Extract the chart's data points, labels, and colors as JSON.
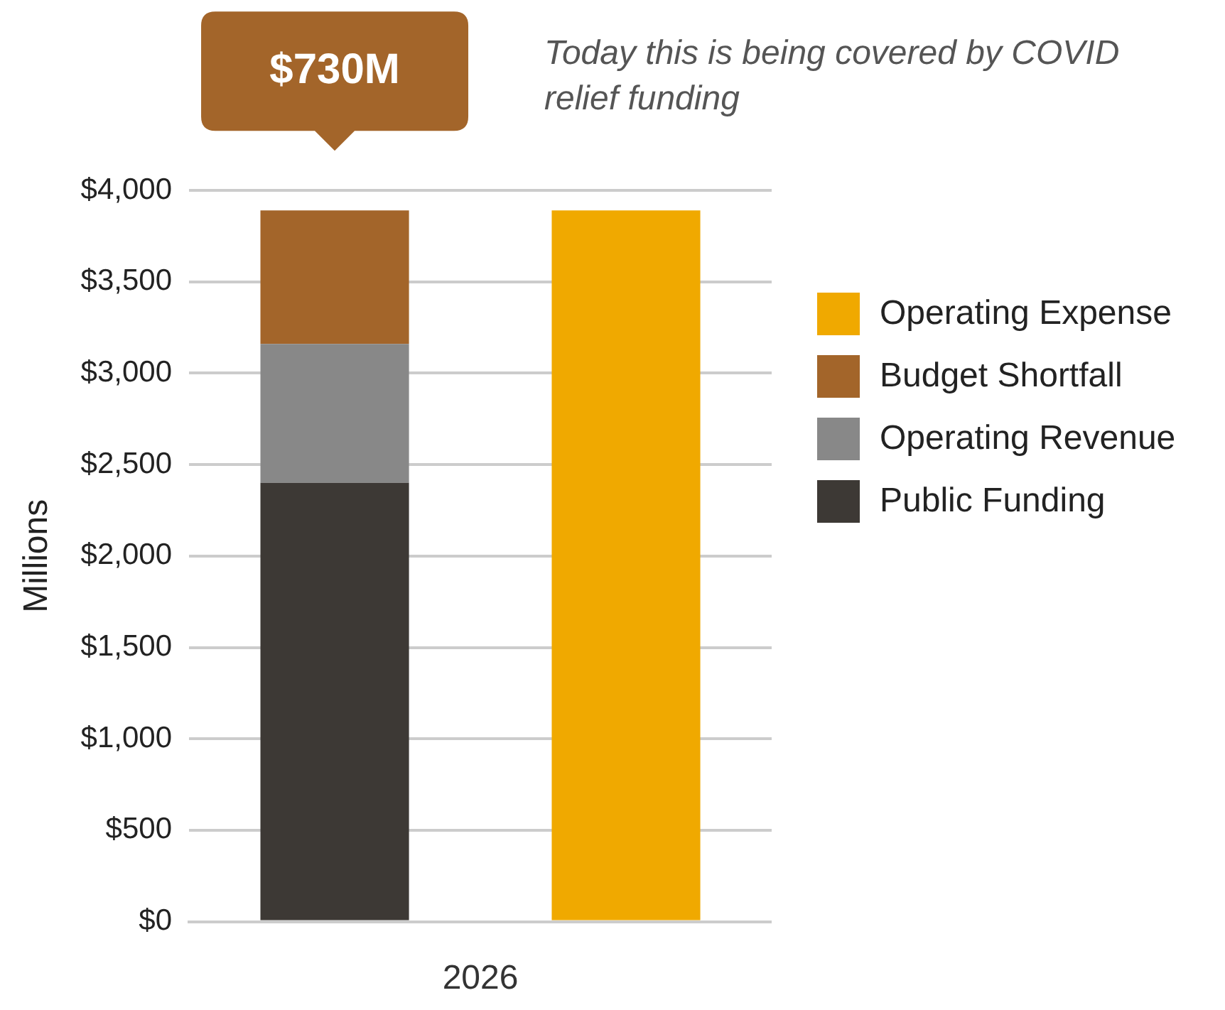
{
  "chart_data": {
    "type": "bar",
    "stacked": true,
    "categories": [
      null,
      null
    ],
    "xlabel": "2026",
    "ylabel": "Millions",
    "series": [
      {
        "name": "Public Funding",
        "color": "#3d3935",
        "values": [
          2400,
          null
        ]
      },
      {
        "name": "Operating Revenue",
        "color": "#888888",
        "values": [
          760,
          null
        ]
      },
      {
        "name": "Budget Shortfall",
        "color": "#a3652a",
        "values": [
          730,
          null
        ]
      },
      {
        "name": "Operating Expense",
        "color": "#f0a900",
        "values": [
          null,
          3890
        ]
      }
    ],
    "ylim": [
      0,
      4000
    ],
    "yticks": [
      {
        "value": 0,
        "label": "$0"
      },
      {
        "value": 500,
        "label": "$500"
      },
      {
        "value": 1000,
        "label": "$1,000"
      },
      {
        "value": 1500,
        "label": "$1,500"
      },
      {
        "value": 2000,
        "label": "$2,000"
      },
      {
        "value": 2500,
        "label": "$2,500"
      },
      {
        "value": 3000,
        "label": "$3,000"
      },
      {
        "value": 3500,
        "label": "$3,500"
      },
      {
        "value": 4000,
        "label": "$4,000"
      }
    ],
    "grid": "y",
    "legend": "right",
    "annotations": [
      {
        "text": "$730M",
        "y": 3890
      },
      "Today this is being covered by COVID relief funding"
    ]
  }
}
